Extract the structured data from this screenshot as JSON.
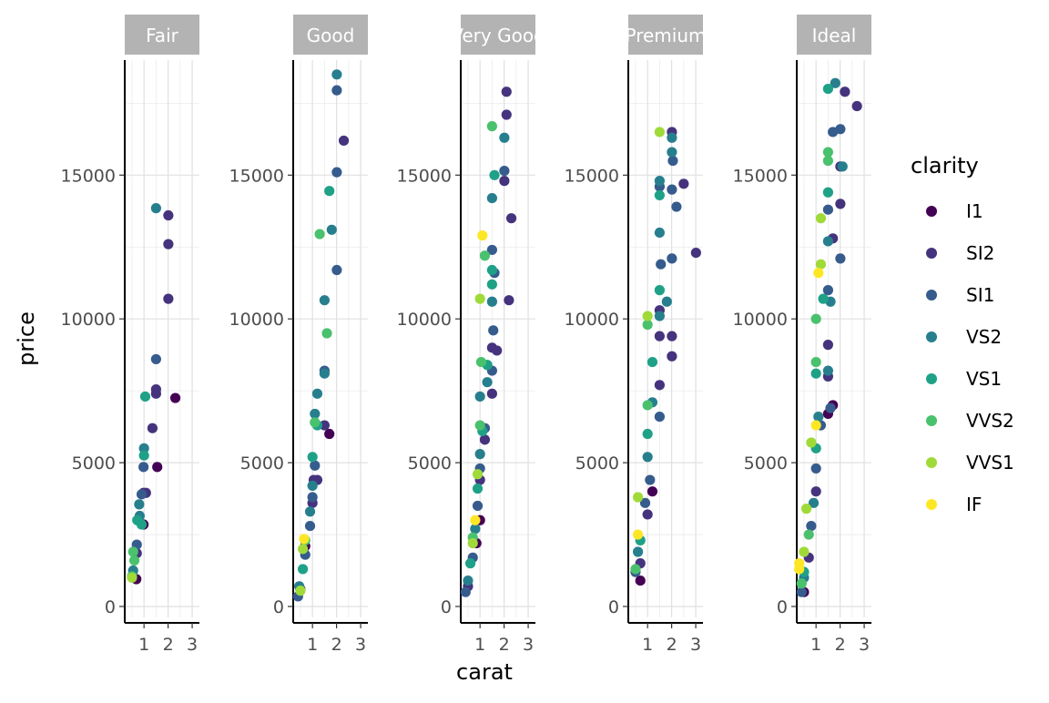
{
  "chart_data": {
    "type": "scatter",
    "xlabel": "carat",
    "ylabel": "price",
    "facets": [
      "Fair",
      "Good",
      "Very Good",
      "Premium",
      "Ideal"
    ],
    "xlim": [
      0.2,
      3.3
    ],
    "ylim": [
      0,
      19000
    ],
    "x_ticks": [
      1,
      2,
      3
    ],
    "y_ticks": [
      0,
      5000,
      10000,
      15000
    ],
    "grid": true,
    "legend": {
      "title": "clarity",
      "placement": "right",
      "entries": [
        "I1",
        "SI2",
        "SI1",
        "VS2",
        "VS1",
        "VVS2",
        "VVS1",
        "IF"
      ],
      "colors": [
        "#440154",
        "#46337e",
        "#365c8d",
        "#277f8e",
        "#1fa187",
        "#4ac16d",
        "#a0da39",
        "#fde725"
      ]
    },
    "facet_data": {
      "Fair": [
        {
          "c": "I1",
          "x": 0.68,
          "y": 950
        },
        {
          "c": "I1",
          "x": 0.98,
          "y": 2850
        },
        {
          "c": "I1",
          "x": 1.55,
          "y": 4850
        },
        {
          "c": "I1",
          "x": 2.3,
          "y": 7250
        },
        {
          "c": "SI2",
          "x": 0.7,
          "y": 1850
        },
        {
          "c": "SI2",
          "x": 0.98,
          "y": 3950
        },
        {
          "c": "SI2",
          "x": 1.08,
          "y": 3950
        },
        {
          "c": "SI2",
          "x": 1.35,
          "y": 6200
        },
        {
          "c": "SI2",
          "x": 1.5,
          "y": 7400
        },
        {
          "c": "SI2",
          "x": 1.5,
          "y": 7550
        },
        {
          "c": "SI2",
          "x": 2.01,
          "y": 10700
        },
        {
          "c": "SI2",
          "x": 2.01,
          "y": 12600
        },
        {
          "c": "SI2",
          "x": 2.01,
          "y": 13600
        },
        {
          "c": "SI1",
          "x": 0.7,
          "y": 2150
        },
        {
          "c": "SI1",
          "x": 0.9,
          "y": 3900
        },
        {
          "c": "SI1",
          "x": 0.98,
          "y": 4850
        },
        {
          "c": "SI1",
          "x": 1.5,
          "y": 8600
        },
        {
          "c": "VS2",
          "x": 0.55,
          "y": 1250
        },
        {
          "c": "VS2",
          "x": 0.82,
          "y": 3150
        },
        {
          "c": "VS2",
          "x": 0.8,
          "y": 3550
        },
        {
          "c": "VS2",
          "x": 1.0,
          "y": 5500
        },
        {
          "c": "VS2",
          "x": 1.5,
          "y": 13850
        },
        {
          "c": "VS1",
          "x": 0.72,
          "y": 3000
        },
        {
          "c": "VS1",
          "x": 0.9,
          "y": 2850
        },
        {
          "c": "VS1",
          "x": 1.0,
          "y": 5250
        },
        {
          "c": "VS1",
          "x": 1.05,
          "y": 7300
        },
        {
          "c": "VVS2",
          "x": 0.5,
          "y": 1050
        },
        {
          "c": "VVS2",
          "x": 0.6,
          "y": 1600
        },
        {
          "c": "VVS2",
          "x": 0.55,
          "y": 1900
        },
        {
          "c": "VVS1",
          "x": 0.5,
          "y": 1000
        }
      ],
      "Good": [
        {
          "c": "I1",
          "x": 0.7,
          "y": 2100
        },
        {
          "c": "I1",
          "x": 1.7,
          "y": 6000
        },
        {
          "c": "SI2",
          "x": 0.5,
          "y": 600
        },
        {
          "c": "SI2",
          "x": 1.0,
          "y": 3600
        },
        {
          "c": "SI2",
          "x": 1.05,
          "y": 4400
        },
        {
          "c": "SI2",
          "x": 1.2,
          "y": 4400
        },
        {
          "c": "SI2",
          "x": 1.5,
          "y": 6300
        },
        {
          "c": "SI2",
          "x": 2.3,
          "y": 16200
        },
        {
          "c": "SI1",
          "x": 0.4,
          "y": 350
        },
        {
          "c": "SI1",
          "x": 0.7,
          "y": 1800
        },
        {
          "c": "SI1",
          "x": 0.9,
          "y": 2800
        },
        {
          "c": "SI1",
          "x": 1.0,
          "y": 3800
        },
        {
          "c": "SI1",
          "x": 1.1,
          "y": 4900
        },
        {
          "c": "SI1",
          "x": 1.5,
          "y": 8200
        },
        {
          "c": "SI1",
          "x": 2.01,
          "y": 11700
        },
        {
          "c": "SI1",
          "x": 2.01,
          "y": 15100
        },
        {
          "c": "SI1",
          "x": 2.01,
          "y": 17950
        },
        {
          "c": "VS2",
          "x": 0.45,
          "y": 700
        },
        {
          "c": "VS2",
          "x": 0.9,
          "y": 3300
        },
        {
          "c": "VS2",
          "x": 1.0,
          "y": 4200
        },
        {
          "c": "VS2",
          "x": 1.1,
          "y": 6700
        },
        {
          "c": "VS2",
          "x": 1.2,
          "y": 7400
        },
        {
          "c": "VS2",
          "x": 1.5,
          "y": 10650
        },
        {
          "c": "VS2",
          "x": 1.5,
          "y": 8100
        },
        {
          "c": "VS2",
          "x": 1.8,
          "y": 13100
        },
        {
          "c": "VS2",
          "x": 2.01,
          "y": 18500
        },
        {
          "c": "VS1",
          "x": 0.6,
          "y": 1300
        },
        {
          "c": "VS1",
          "x": 1.0,
          "y": 5200
        },
        {
          "c": "VS1",
          "x": 1.2,
          "y": 6300
        },
        {
          "c": "VS1",
          "x": 1.7,
          "y": 14450
        },
        {
          "c": "VVS2",
          "x": 0.7,
          "y": 2300
        },
        {
          "c": "VVS2",
          "x": 1.1,
          "y": 6400
        },
        {
          "c": "VVS2",
          "x": 1.3,
          "y": 12950
        },
        {
          "c": "VVS2",
          "x": 1.6,
          "y": 9500
        },
        {
          "c": "VVS1",
          "x": 0.6,
          "y": 2000
        },
        {
          "c": "VVS1",
          "x": 0.5,
          "y": 550
        },
        {
          "c": "IF",
          "x": 0.65,
          "y": 2350
        }
      ],
      "Very Good": [
        {
          "c": "I1",
          "x": 1.0,
          "y": 3000
        },
        {
          "c": "I1",
          "x": 0.85,
          "y": 2200
        },
        {
          "c": "SI2",
          "x": 0.5,
          "y": 700
        },
        {
          "c": "SI2",
          "x": 1.0,
          "y": 4400
        },
        {
          "c": "SI2",
          "x": 1.2,
          "y": 5800
        },
        {
          "c": "SI2",
          "x": 1.5,
          "y": 7400
        },
        {
          "c": "SI2",
          "x": 1.5,
          "y": 9000
        },
        {
          "c": "SI2",
          "x": 1.7,
          "y": 8900
        },
        {
          "c": "SI2",
          "x": 2.01,
          "y": 14800
        },
        {
          "c": "SI2",
          "x": 2.1,
          "y": 17100
        },
        {
          "c": "SI2",
          "x": 2.1,
          "y": 17900
        },
        {
          "c": "SI2",
          "x": 2.3,
          "y": 13500
        },
        {
          "c": "SI2",
          "x": 2.2,
          "y": 10650
        },
        {
          "c": "SI1",
          "x": 0.4,
          "y": 500
        },
        {
          "c": "SI1",
          "x": 0.7,
          "y": 1700
        },
        {
          "c": "SI1",
          "x": 0.9,
          "y": 3500
        },
        {
          "c": "SI1",
          "x": 1.0,
          "y": 4800
        },
        {
          "c": "SI1",
          "x": 1.2,
          "y": 6200
        },
        {
          "c": "SI1",
          "x": 1.5,
          "y": 8200
        },
        {
          "c": "SI1",
          "x": 1.55,
          "y": 9600
        },
        {
          "c": "SI1",
          "x": 1.6,
          "y": 11600
        },
        {
          "c": "SI1",
          "x": 1.5,
          "y": 12400
        },
        {
          "c": "SI1",
          "x": 2.01,
          "y": 15150
        },
        {
          "c": "VS2",
          "x": 0.5,
          "y": 900
        },
        {
          "c": "VS2",
          "x": 0.8,
          "y": 2700
        },
        {
          "c": "VS2",
          "x": 1.0,
          "y": 5300
        },
        {
          "c": "VS2",
          "x": 1.0,
          "y": 7300
        },
        {
          "c": "VS2",
          "x": 1.3,
          "y": 7800
        },
        {
          "c": "VS2",
          "x": 1.5,
          "y": 10600
        },
        {
          "c": "VS2",
          "x": 1.5,
          "y": 14200
        },
        {
          "c": "VS2",
          "x": 2.01,
          "y": 16300
        },
        {
          "c": "VS1",
          "x": 0.6,
          "y": 1500
        },
        {
          "c": "VS1",
          "x": 0.9,
          "y": 4100
        },
        {
          "c": "VS1",
          "x": 1.1,
          "y": 6100
        },
        {
          "c": "VS1",
          "x": 1.3,
          "y": 8400
        },
        {
          "c": "VS1",
          "x": 1.5,
          "y": 11200
        },
        {
          "c": "VS1",
          "x": 1.6,
          "y": 15000
        },
        {
          "c": "VS1",
          "x": 1.5,
          "y": 11700
        },
        {
          "c": "VVS2",
          "x": 0.7,
          "y": 2400
        },
        {
          "c": "VVS2",
          "x": 1.0,
          "y": 6300
        },
        {
          "c": "VVS2",
          "x": 1.2,
          "y": 12200
        },
        {
          "c": "VVS2",
          "x": 1.5,
          "y": 16700
        },
        {
          "c": "VVS2",
          "x": 1.05,
          "y": 8500
        },
        {
          "c": "VVS1",
          "x": 0.7,
          "y": 2200
        },
        {
          "c": "VVS1",
          "x": 1.0,
          "y": 10700
        },
        {
          "c": "VVS1",
          "x": 0.9,
          "y": 4600
        },
        {
          "c": "IF",
          "x": 1.1,
          "y": 12900
        },
        {
          "c": "IF",
          "x": 0.8,
          "y": 3000
        }
      ],
      "Premium": [
        {
          "c": "I1",
          "x": 0.7,
          "y": 900
        },
        {
          "c": "I1",
          "x": 1.2,
          "y": 4000
        },
        {
          "c": "SI2",
          "x": 0.7,
          "y": 1500
        },
        {
          "c": "SI2",
          "x": 1.0,
          "y": 3200
        },
        {
          "c": "SI2",
          "x": 1.5,
          "y": 7700
        },
        {
          "c": "SI2",
          "x": 1.5,
          "y": 9400
        },
        {
          "c": "SI2",
          "x": 1.5,
          "y": 10300
        },
        {
          "c": "SI2",
          "x": 2.01,
          "y": 8700
        },
        {
          "c": "SI2",
          "x": 2.01,
          "y": 9400
        },
        {
          "c": "SI2",
          "x": 2.01,
          "y": 16500
        },
        {
          "c": "SI2",
          "x": 2.5,
          "y": 14700
        },
        {
          "c": "SI2",
          "x": 3.01,
          "y": 12300
        },
        {
          "c": "SI1",
          "x": 0.5,
          "y": 1200
        },
        {
          "c": "SI1",
          "x": 0.9,
          "y": 3600
        },
        {
          "c": "SI1",
          "x": 1.1,
          "y": 4400
        },
        {
          "c": "SI1",
          "x": 1.5,
          "y": 6600
        },
        {
          "c": "SI1",
          "x": 1.55,
          "y": 11900
        },
        {
          "c": "SI1",
          "x": 1.5,
          "y": 14600
        },
        {
          "c": "SI1",
          "x": 2.01,
          "y": 12100
        },
        {
          "c": "SI1",
          "x": 2.01,
          "y": 14500
        },
        {
          "c": "SI1",
          "x": 2.2,
          "y": 13900
        },
        {
          "c": "SI1",
          "x": 2.05,
          "y": 15500
        },
        {
          "c": "VS2",
          "x": 0.6,
          "y": 1900
        },
        {
          "c": "VS2",
          "x": 1.0,
          "y": 5200
        },
        {
          "c": "VS2",
          "x": 1.2,
          "y": 7100
        },
        {
          "c": "VS2",
          "x": 1.5,
          "y": 10100
        },
        {
          "c": "VS2",
          "x": 1.5,
          "y": 13000
        },
        {
          "c": "VS2",
          "x": 1.5,
          "y": 14800
        },
        {
          "c": "VS2",
          "x": 2.01,
          "y": 15800
        },
        {
          "c": "VS2",
          "x": 2.01,
          "y": 16300
        },
        {
          "c": "VS2",
          "x": 1.8,
          "y": 10600
        },
        {
          "c": "VS1",
          "x": 0.7,
          "y": 2300
        },
        {
          "c": "VS1",
          "x": 1.0,
          "y": 6000
        },
        {
          "c": "VS1",
          "x": 1.2,
          "y": 8500
        },
        {
          "c": "VS1",
          "x": 1.5,
          "y": 11000
        },
        {
          "c": "VS1",
          "x": 1.5,
          "y": 14300
        },
        {
          "c": "VVS2",
          "x": 0.5,
          "y": 1300
        },
        {
          "c": "VVS2",
          "x": 1.0,
          "y": 7000
        },
        {
          "c": "VVS2",
          "x": 1.0,
          "y": 9800
        },
        {
          "c": "VVS1",
          "x": 1.0,
          "y": 10100
        },
        {
          "c": "VVS1",
          "x": 1.5,
          "y": 16500
        },
        {
          "c": "VVS1",
          "x": 0.6,
          "y": 3800
        },
        {
          "c": "IF",
          "x": 0.6,
          "y": 2500
        }
      ],
      "Ideal": [
        {
          "c": "I1",
          "x": 0.5,
          "y": 500
        },
        {
          "c": "I1",
          "x": 1.5,
          "y": 6700
        },
        {
          "c": "I1",
          "x": 1.7,
          "y": 7000
        },
        {
          "c": "SI2",
          "x": 0.7,
          "y": 1700
        },
        {
          "c": "SI2",
          "x": 1.0,
          "y": 4000
        },
        {
          "c": "SI2",
          "x": 1.5,
          "y": 9100
        },
        {
          "c": "SI2",
          "x": 1.5,
          "y": 8000
        },
        {
          "c": "SI2",
          "x": 1.7,
          "y": 12800
        },
        {
          "c": "SI2",
          "x": 2.01,
          "y": 14000
        },
        {
          "c": "SI2",
          "x": 2.2,
          "y": 17900
        },
        {
          "c": "SI2",
          "x": 2.7,
          "y": 17400
        },
        {
          "c": "SI2",
          "x": 2.01,
          "y": 15300
        },
        {
          "c": "SI1",
          "x": 0.4,
          "y": 500
        },
        {
          "c": "SI1",
          "x": 0.8,
          "y": 2800
        },
        {
          "c": "SI1",
          "x": 1.0,
          "y": 4800
        },
        {
          "c": "SI1",
          "x": 1.2,
          "y": 6300
        },
        {
          "c": "SI1",
          "x": 1.5,
          "y": 11000
        },
        {
          "c": "SI1",
          "x": 1.5,
          "y": 13800
        },
        {
          "c": "SI1",
          "x": 1.7,
          "y": 16500
        },
        {
          "c": "SI1",
          "x": 2.01,
          "y": 16600
        },
        {
          "c": "SI1",
          "x": 2.01,
          "y": 12100
        },
        {
          "c": "SI1",
          "x": 1.6,
          "y": 6900
        },
        {
          "c": "VS2",
          "x": 0.5,
          "y": 1000
        },
        {
          "c": "VS2",
          "x": 0.9,
          "y": 3600
        },
        {
          "c": "VS2",
          "x": 1.1,
          "y": 6600
        },
        {
          "c": "VS2",
          "x": 1.5,
          "y": 8200
        },
        {
          "c": "VS2",
          "x": 1.5,
          "y": 12700
        },
        {
          "c": "VS2",
          "x": 1.6,
          "y": 10600
        },
        {
          "c": "VS2",
          "x": 1.8,
          "y": 18200
        },
        {
          "c": "VS2",
          "x": 2.1,
          "y": 15300
        },
        {
          "c": "VS1",
          "x": 0.5,
          "y": 1200
        },
        {
          "c": "VS1",
          "x": 1.0,
          "y": 5500
        },
        {
          "c": "VS1",
          "x": 1.0,
          "y": 8100
        },
        {
          "c": "VS1",
          "x": 1.3,
          "y": 10700
        },
        {
          "c": "VS1",
          "x": 1.5,
          "y": 14400
        },
        {
          "c": "VS1",
          "x": 1.5,
          "y": 18000
        },
        {
          "c": "VVS2",
          "x": 0.4,
          "y": 800
        },
        {
          "c": "VVS2",
          "x": 0.7,
          "y": 2500
        },
        {
          "c": "VVS2",
          "x": 1.0,
          "y": 8500
        },
        {
          "c": "VVS2",
          "x": 1.0,
          "y": 10000
        },
        {
          "c": "VVS2",
          "x": 1.5,
          "y": 15500
        },
        {
          "c": "VVS2",
          "x": 1.5,
          "y": 15800
        },
        {
          "c": "VVS1",
          "x": 0.5,
          "y": 1900
        },
        {
          "c": "VVS1",
          "x": 0.8,
          "y": 5700
        },
        {
          "c": "VVS1",
          "x": 1.2,
          "y": 11900
        },
        {
          "c": "VVS1",
          "x": 1.2,
          "y": 13500
        },
        {
          "c": "VVS1",
          "x": 0.6,
          "y": 3400
        },
        {
          "c": "IF",
          "x": 0.3,
          "y": 1300
        },
        {
          "c": "IF",
          "x": 1.1,
          "y": 11600
        },
        {
          "c": "IF",
          "x": 1.0,
          "y": 6300
        },
        {
          "c": "IF",
          "x": 0.3,
          "y": 1500
        }
      ]
    }
  }
}
